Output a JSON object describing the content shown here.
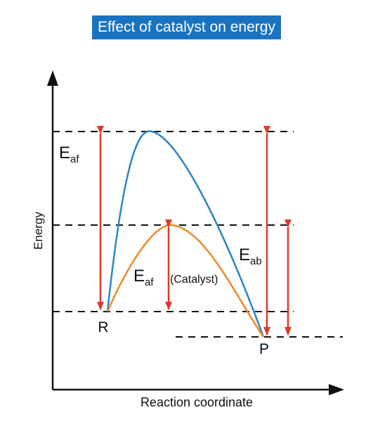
{
  "title": "Effect of catalyst on energy",
  "axes": {
    "y_label": "Energy",
    "x_label": "Reaction coordinate"
  },
  "points": {
    "reactant": "R",
    "product": "P"
  },
  "energy_labels": {
    "forward_main": "E",
    "forward_main_sub": "af",
    "forward_catalyst": "E",
    "forward_catalyst_sub": "af",
    "catalyst_note": "(Catalyst)",
    "backward_main": "E",
    "backward_main_sub": "ab"
  },
  "colors": {
    "title_bg": "#1a73c1",
    "uncatalyzed_curve": "#2a86c6",
    "catalyzed_curve": "#f0882a",
    "arrows": "#e0392b",
    "axes": "#111111"
  }
}
